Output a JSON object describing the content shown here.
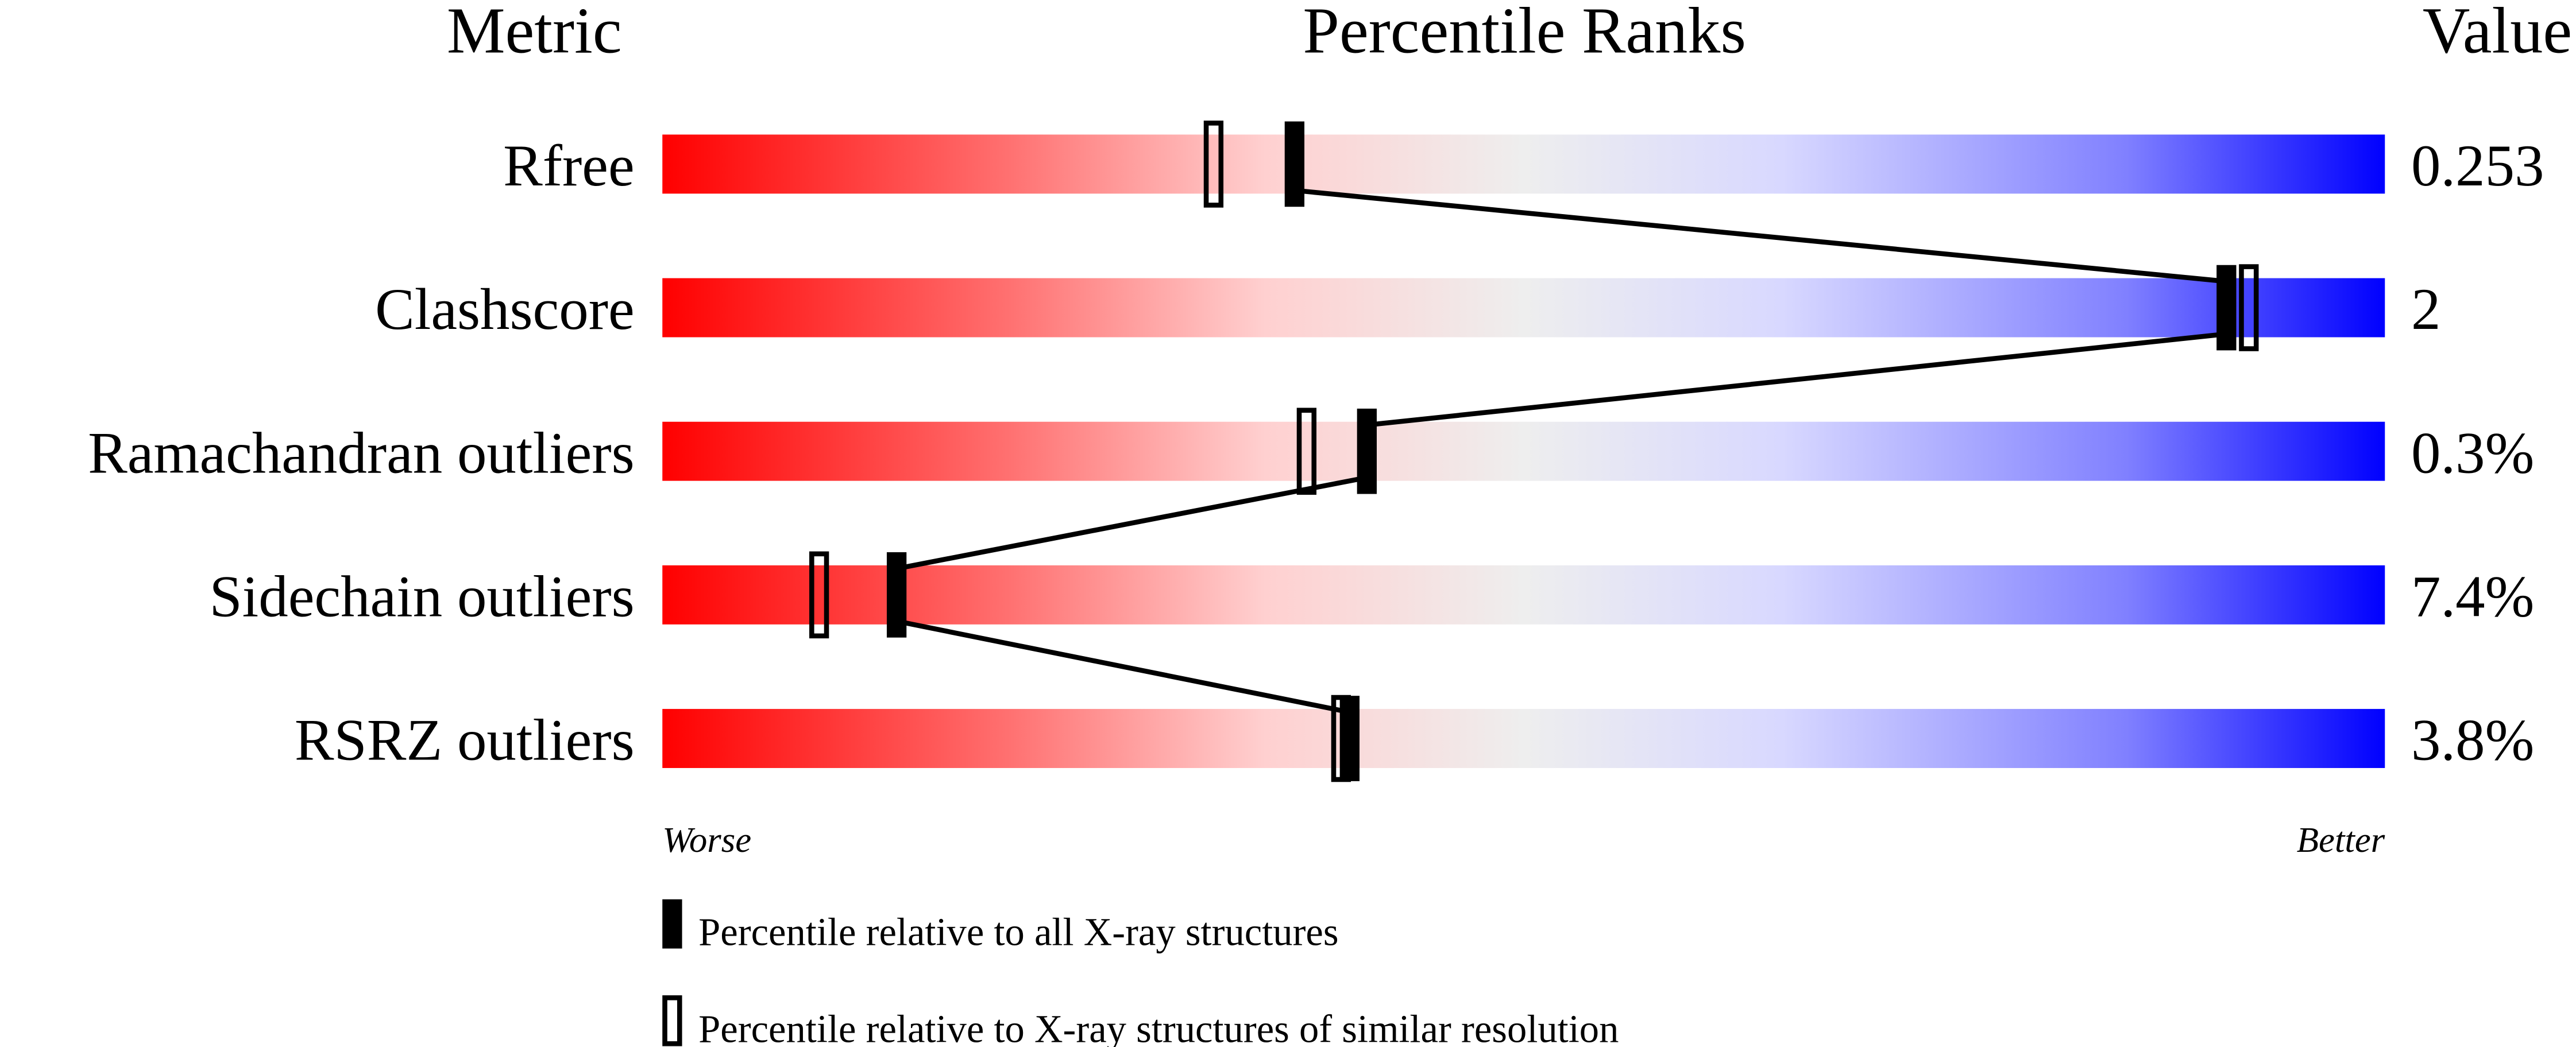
{
  "chart_data": {
    "type": "percentile-slider",
    "headers": {
      "metric": "Metric",
      "ranks": "Percentile Ranks",
      "value": "Value"
    },
    "xlim": [
      0,
      100
    ],
    "axis_labels": {
      "left": "Worse",
      "right": "Better"
    },
    "gradient_colors": [
      "#ff0000",
      "#ff7070",
      "#ffd0d0",
      "#eeeeee",
      "#d8d8ff",
      "#8080ff",
      "#0000ff"
    ],
    "metrics": [
      {
        "name": "Rfree",
        "value": "0.253",
        "percentile_all": 36.7,
        "percentile_similar": 32.0
      },
      {
        "name": "Clashscore",
        "value": "2",
        "percentile_all": 90.8,
        "percentile_similar": 92.1
      },
      {
        "name": "Ramachandran outliers",
        "value": "0.3%",
        "percentile_all": 40.9,
        "percentile_similar": 37.4
      },
      {
        "name": "Sidechain outliers",
        "value": "7.4%",
        "percentile_all": 13.6,
        "percentile_similar": 9.1
      },
      {
        "name": "RSRZ outliers",
        "value": "3.8%",
        "percentile_all": 39.9,
        "percentile_similar": 39.4
      }
    ],
    "legend": [
      {
        "marker": "filled",
        "label": "Percentile relative to all X-ray structures"
      },
      {
        "marker": "open",
        "label": "Percentile relative to X-ray structures of similar resolution"
      }
    ]
  }
}
